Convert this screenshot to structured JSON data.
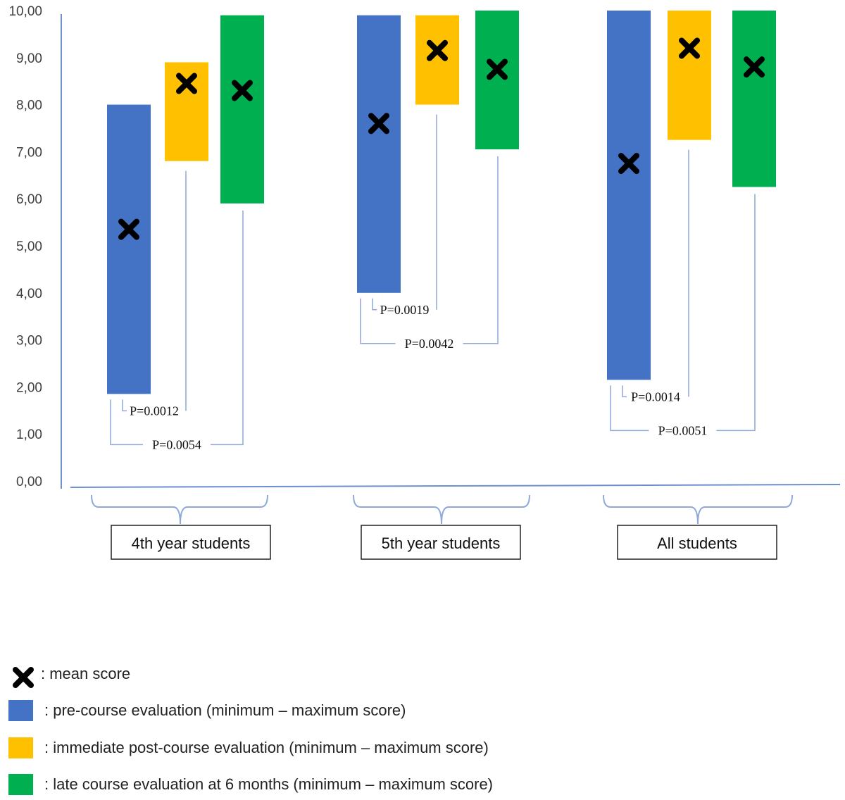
{
  "chart_data": {
    "type": "range-bar",
    "y_ticks": [
      "0,00",
      "1,00",
      "2,00",
      "3,00",
      "4,00",
      "5,00",
      "6,00",
      "7,00",
      "8,00",
      "9,00",
      "10,00"
    ],
    "ylim": [
      0,
      10
    ],
    "grid": false,
    "categories": [
      "4th year students",
      "5th year students",
      "All students"
    ],
    "series_colors": {
      "pre": "#4472c4",
      "post": "#ffc000",
      "late": "#00b050"
    },
    "groups": [
      {
        "label": "4th year students",
        "bars": [
          {
            "series": "pre",
            "min": 1.85,
            "max": 8.0,
            "mean": 5.35
          },
          {
            "series": "post",
            "min": 6.8,
            "max": 8.9,
            "mean": 8.45
          },
          {
            "series": "late",
            "min": 5.9,
            "max": 9.9,
            "mean": 8.3
          }
        ],
        "p_values": {
          "pre_post": "P=0.0012",
          "pre_late": "P=0.0054"
        }
      },
      {
        "label": "5th year students",
        "bars": [
          {
            "series": "pre",
            "min": 4.0,
            "max": 9.9,
            "mean": 7.6
          },
          {
            "series": "post",
            "min": 8.0,
            "max": 9.9,
            "mean": 9.15
          },
          {
            "series": "late",
            "min": 7.05,
            "max": 10.0,
            "mean": 8.75
          }
        ],
        "p_values": {
          "pre_post": "P=0.0019",
          "pre_late": "P=0.0042"
        }
      },
      {
        "label": "All students",
        "bars": [
          {
            "series": "pre",
            "min": 2.15,
            "max": 10.0,
            "mean": 6.75
          },
          {
            "series": "post",
            "min": 7.25,
            "max": 10.0,
            "mean": 9.2
          },
          {
            "series": "late",
            "min": 6.25,
            "max": 10.0,
            "mean": 8.8
          }
        ],
        "p_values": {
          "pre_post": "P=0.0014",
          "pre_late": "P=0.0051"
        }
      }
    ],
    "legend": [
      {
        "marker": "cross",
        "text": ": mean score"
      },
      {
        "marker": "pre",
        "text": ": pre-course evaluation (minimum – maximum score)"
      },
      {
        "marker": "post",
        "text": ": immediate post-course evaluation (minimum – maximum score)"
      },
      {
        "marker": "late",
        "text": ": late course evaluation at 6 months (minimum – maximum score)"
      }
    ],
    "legend_placement": "bottom-left"
  }
}
